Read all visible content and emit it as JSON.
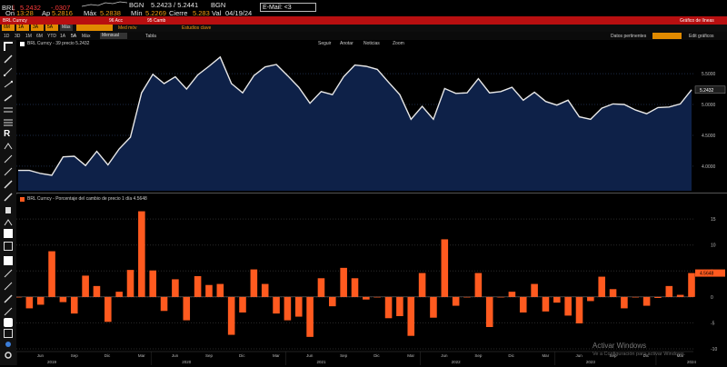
{
  "top_bar": {
    "ticker": "BRL",
    "price": "5.2432",
    "change": "-.0307",
    "bid_ask_label": "BGN",
    "bid_ask": "5.2423 / 5.2441",
    "bid_ask_src": "BGN",
    "time_label": "On",
    "time": "13:28",
    "open_label": "Ap",
    "open": "5.2816",
    "high_label": "Máx",
    "high": "5.2838",
    "low_label": "Mín",
    "low": "5.2269",
    "close_label": "Cierre",
    "close": "5.283",
    "close_date_label": "Val",
    "close_date": "04/19/24",
    "command_input": "E-Mail: <3"
  },
  "toolbar_rows": {
    "row2_left": "BRL Curncy",
    "row2_center": "96 Acc",
    "row2_center2": "95 Camb",
    "row2_right": "Gráfico de líneas",
    "row3_items": [
      "6M",
      "1A",
      "3A",
      "5A",
      "Más"
    ],
    "row3_labels": [
      "Med móv",
      "Estudios clave"
    ],
    "row4_range": [
      "1D",
      "3D",
      "1M",
      "6M",
      "YTD",
      "1A",
      "5A",
      "Máx"
    ],
    "row4_freq": "Mensual",
    "row4_table": "Tabla",
    "row4_right": [
      "Datos pertinentes",
      "Edit gráficos"
    ]
  },
  "upper_panel": {
    "legend": "BRL Curncy - 39 precio 5.2432",
    "tabs": [
      "Seguir",
      "Anotar",
      "Noticias",
      "Zoom"
    ],
    "last_value_tag": "5.2432",
    "yaxis_labels": [
      "5.5000",
      "5.0000",
      "4.5000",
      "4.0000"
    ]
  },
  "lower_panel": {
    "legend": "BRL Curncy - Porcentaje del cambio de precio 1 día 4.5648",
    "last_value_tag": "4.5648",
    "yaxis_labels": [
      "15",
      "10",
      "5",
      "0",
      "-5",
      "-10"
    ]
  },
  "xaxis": {
    "months": [
      "Jun",
      "Sep",
      "Dic",
      "Mar",
      "Jun",
      "Sep",
      "Dic",
      "Mar",
      "Jun",
      "Sep",
      "Dic",
      "Mar",
      "Jun",
      "Sep",
      "Dic",
      "Mar",
      "Jun",
      "Sep",
      "Dic",
      "Mar"
    ],
    "years": [
      "2019",
      "2020",
      "2021",
      "2022",
      "2023",
      "2024"
    ]
  },
  "watermark": {
    "line1": "Activar Windows",
    "line2": "Ve a Configuración para activar Windows."
  },
  "colors": {
    "area_fill": "#0e2148",
    "line": "#e8e8e8",
    "bar": "#ff5a1f",
    "accent_red": "#b80f10",
    "amber": "#e08a00"
  },
  "chart_data": [
    {
      "type": "area",
      "title": "BRL Curncy",
      "x": [
        "2019-04",
        "2019-05",
        "2019-06",
        "2019-07",
        "2019-08",
        "2019-09",
        "2019-10",
        "2019-11",
        "2019-12",
        "2020-01",
        "2020-02",
        "2020-03",
        "2020-04",
        "2020-05",
        "2020-06",
        "2020-07",
        "2020-08",
        "2020-09",
        "2020-10",
        "2020-11",
        "2020-12",
        "2021-01",
        "2021-02",
        "2021-03",
        "2021-04",
        "2021-05",
        "2021-06",
        "2021-07",
        "2021-08",
        "2021-09",
        "2021-10",
        "2021-11",
        "2021-12",
        "2022-01",
        "2022-02",
        "2022-03",
        "2022-04",
        "2022-05",
        "2022-06",
        "2022-07",
        "2022-08",
        "2022-09",
        "2022-10",
        "2022-11",
        "2022-12",
        "2023-01",
        "2023-02",
        "2023-03",
        "2023-04",
        "2023-05",
        "2023-06",
        "2023-07",
        "2023-08",
        "2023-09",
        "2023-10",
        "2023-11",
        "2023-12",
        "2024-01",
        "2024-02",
        "2024-03",
        "2024-04"
      ],
      "values": [
        3.93,
        3.93,
        3.88,
        3.85,
        4.15,
        4.16,
        4.01,
        4.24,
        4.02,
        4.28,
        4.47,
        5.19,
        5.49,
        5.34,
        5.45,
        5.25,
        5.48,
        5.62,
        5.77,
        5.34,
        5.19,
        5.47,
        5.61,
        5.65,
        5.47,
        5.28,
        5.02,
        5.21,
        5.16,
        5.45,
        5.64,
        5.62,
        5.57,
        5.36,
        5.16,
        4.76,
        4.97,
        4.76,
        5.26,
        5.18,
        5.19,
        5.42,
        5.19,
        5.21,
        5.28,
        5.07,
        5.2,
        5.05,
        4.99,
        5.07,
        4.8,
        4.76,
        4.94,
        5.01,
        5.0,
        4.91,
        4.85,
        4.95,
        4.96,
        5.01,
        5.24
      ],
      "ylim": [
        3.6,
        5.9
      ],
      "ylabel": ""
    },
    {
      "type": "bar",
      "title": "Porcentaje del cambio de precio 1 día",
      "x": [
        "2019-04",
        "2019-05",
        "2019-06",
        "2019-07",
        "2019-08",
        "2019-09",
        "2019-10",
        "2019-11",
        "2019-12",
        "2020-01",
        "2020-02",
        "2020-03",
        "2020-04",
        "2020-05",
        "2020-06",
        "2020-07",
        "2020-08",
        "2020-09",
        "2020-10",
        "2020-11",
        "2020-12",
        "2021-01",
        "2021-02",
        "2021-03",
        "2021-04",
        "2021-05",
        "2021-06",
        "2021-07",
        "2021-08",
        "2021-09",
        "2021-10",
        "2021-11",
        "2021-12",
        "2022-01",
        "2022-02",
        "2022-03",
        "2022-04",
        "2022-05",
        "2022-06",
        "2022-07",
        "2022-08",
        "2022-09",
        "2022-10",
        "2022-11",
        "2022-12",
        "2023-01",
        "2023-02",
        "2023-03",
        "2023-04",
        "2023-05",
        "2023-06",
        "2023-07",
        "2023-08",
        "2023-09",
        "2023-10",
        "2023-11",
        "2023-12",
        "2024-01",
        "2024-02",
        "2024-03",
        "2024-04"
      ],
      "values": [
        0.0,
        -2.2,
        -1.5,
        8.8,
        -1.0,
        -3.2,
        4.1,
        2.1,
        -4.8,
        1.0,
        5.2,
        16.5,
        5.1,
        -2.7,
        3.4,
        -4.5,
        4.0,
        2.3,
        2.5,
        -7.3,
        -3.0,
        5.3,
        2.5,
        -3.2,
        -4.5,
        -3.8,
        -7.7,
        3.6,
        -1.8,
        5.6,
        3.6,
        -0.5,
        0.0,
        -4.1,
        -3.7,
        -7.5,
        4.6,
        -4.0,
        11.1,
        -1.7,
        0.0,
        4.6,
        -5.8,
        0.0,
        1.0,
        -3.0,
        2.5,
        -2.8,
        -1.1,
        -3.6,
        -5.1,
        -0.8,
        3.9,
        1.5,
        -2.2,
        0.0,
        -1.7,
        -0.2,
        2.1,
        0.4,
        4.6
      ],
      "ylim": [
        -10,
        18
      ],
      "ylabel": ""
    }
  ]
}
